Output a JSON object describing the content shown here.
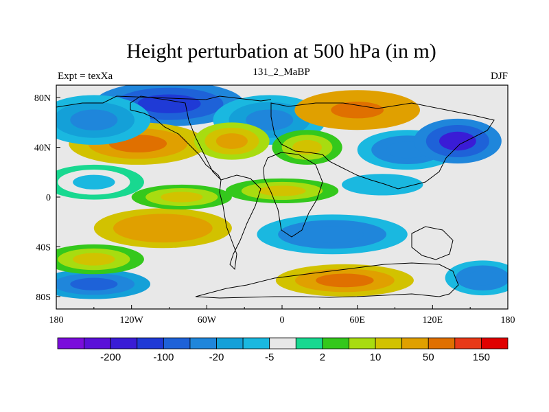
{
  "title": "Height perturbation at 500 hPa (in m)",
  "subtitle_left": "Expt = texXa",
  "subtitle_center": "131_2_MaBP",
  "subtitle_right": "DJF",
  "chart_data": {
    "type": "heatmap",
    "variable": "Height perturbation at 500 hPa",
    "units": "m",
    "xlim": [
      -180,
      180
    ],
    "ylim": [
      -90,
      90
    ],
    "x_ticks": [
      {
        "value": -180,
        "label": "180"
      },
      {
        "value": -120,
        "label": "120W"
      },
      {
        "value": -60,
        "label": "60W"
      },
      {
        "value": 0,
        "label": "0"
      },
      {
        "value": 60,
        "label": "60E"
      },
      {
        "value": 120,
        "label": "120E"
      },
      {
        "value": 180,
        "label": "180"
      }
    ],
    "y_ticks": [
      {
        "value": 80,
        "label": "80N"
      },
      {
        "value": 40,
        "label": "40N"
      },
      {
        "value": 0,
        "label": "0"
      },
      {
        "value": -40,
        "label": "40S"
      },
      {
        "value": -80,
        "label": "80S"
      }
    ],
    "colorbar": {
      "colors": [
        "#7a0ddb",
        "#5a10d8",
        "#3a1cd6",
        "#1f3ad6",
        "#1e62d8",
        "#1f86db",
        "#14a0d8",
        "#1ab8e0",
        "#e8e8e8",
        "#18d890",
        "#34c81c",
        "#a8dc10",
        "#d2c200",
        "#e0a000",
        "#e07000",
        "#e83a18",
        "#e00000"
      ],
      "labels": [
        {
          "after_bin": 1,
          "text": "-200"
        },
        {
          "after_bin": 3,
          "text": "-100"
        },
        {
          "after_bin": 5,
          "text": "-20"
        },
        {
          "after_bin": 7,
          "text": "-5"
        },
        {
          "after_bin": 9,
          "text": "2"
        },
        {
          "after_bin": 11,
          "text": "10"
        },
        {
          "after_bin": 13,
          "text": "50"
        },
        {
          "after_bin": 15,
          "text": "150"
        }
      ]
    },
    "field_features": [
      {
        "lon": -90,
        "lat": 75,
        "value": -120,
        "width": 60,
        "height": 18
      },
      {
        "lon": -150,
        "lat": 62,
        "value": -30,
        "width": 45,
        "height": 20
      },
      {
        "lon": -115,
        "lat": 43,
        "value": 60,
        "width": 55,
        "height": 17
      },
      {
        "lon": -40,
        "lat": 45,
        "value": 30,
        "width": 30,
        "height": 15
      },
      {
        "lon": 20,
        "lat": 40,
        "value": 12,
        "width": 28,
        "height": 14
      },
      {
        "lon": -10,
        "lat": 62,
        "value": -30,
        "width": 45,
        "height": 20
      },
      {
        "lon": 60,
        "lat": 70,
        "value": 80,
        "width": 50,
        "height": 16
      },
      {
        "lon": 140,
        "lat": 45,
        "value": -180,
        "width": 35,
        "height": 18
      },
      {
        "lon": 100,
        "lat": 38,
        "value": -40,
        "width": 40,
        "height": 16
      },
      {
        "lon": -150,
        "lat": 12,
        "value": -8,
        "width": 40,
        "height": 14
      },
      {
        "lon": 80,
        "lat": 10,
        "value": -10,
        "width": 45,
        "height": 12
      },
      {
        "lon": -80,
        "lat": 0,
        "value": 12,
        "width": 40,
        "height": 10
      },
      {
        "lon": 0,
        "lat": 5,
        "value": 15,
        "width": 45,
        "height": 10
      },
      {
        "lon": -95,
        "lat": -25,
        "value": 40,
        "width": 55,
        "height": 16
      },
      {
        "lon": 40,
        "lat": -30,
        "value": -40,
        "width": 60,
        "height": 16
      },
      {
        "lon": -150,
        "lat": -50,
        "value": 12,
        "width": 40,
        "height": 12
      },
      {
        "lon": 50,
        "lat": -67,
        "value": 60,
        "width": 55,
        "height": 13
      },
      {
        "lon": -150,
        "lat": -70,
        "value": -60,
        "width": 45,
        "height": 12
      },
      {
        "lon": 160,
        "lat": -65,
        "value": -40,
        "width": 30,
        "height": 14
      }
    ]
  }
}
